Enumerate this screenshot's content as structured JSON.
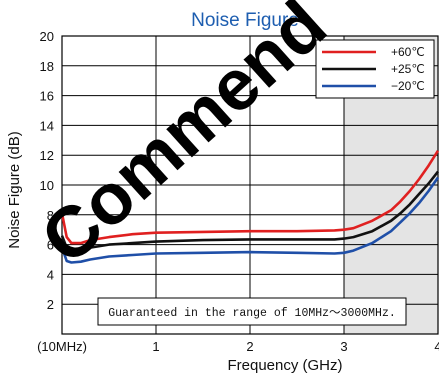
{
  "chart_data": {
    "type": "line",
    "title": "Noise Figure",
    "xlabel": "Frequency (GHz)",
    "ylabel": "Noise Figure (dB)",
    "xlim": [
      0,
      4
    ],
    "ylim": [
      0,
      20
    ],
    "x_ticks": [
      {
        "value": 0,
        "label": "(10MHz)"
      },
      {
        "value": 1,
        "label": "1"
      },
      {
        "value": 2,
        "label": "2"
      },
      {
        "value": 3,
        "label": "3"
      },
      {
        "value": 4,
        "label": "4"
      }
    ],
    "y_ticks": [
      2,
      4,
      6,
      8,
      10,
      12,
      14,
      16,
      18,
      20
    ],
    "grid": true,
    "legend_position": "top-right",
    "shaded_range": [
      3,
      4
    ],
    "annotation": "Guaranteed in the range of 10MHz～3000MHz.",
    "watermark": "Commend",
    "series": [
      {
        "name": "+60℃",
        "color": "#e02020",
        "x": [
          0,
          0.05,
          0.1,
          0.2,
          0.3,
          0.5,
          0.75,
          1.0,
          1.5,
          2.0,
          2.5,
          2.9,
          3.0,
          3.1,
          3.3,
          3.5,
          3.6,
          3.7,
          3.8,
          3.9,
          4.0
        ],
        "y": [
          8.1,
          6.5,
          6.1,
          6.1,
          6.3,
          6.5,
          6.7,
          6.8,
          6.85,
          6.9,
          6.9,
          6.95,
          7.0,
          7.1,
          7.6,
          8.3,
          8.9,
          9.6,
          10.4,
          11.3,
          12.3
        ]
      },
      {
        "name": "+25℃",
        "color": "#111111",
        "x": [
          0,
          0.05,
          0.1,
          0.2,
          0.3,
          0.5,
          0.75,
          1.0,
          1.5,
          2.0,
          2.5,
          2.9,
          3.0,
          3.1,
          3.3,
          3.5,
          3.6,
          3.7,
          3.8,
          3.9,
          4.0
        ],
        "y": [
          6.6,
          5.8,
          5.6,
          5.65,
          5.8,
          6.0,
          6.1,
          6.2,
          6.3,
          6.35,
          6.35,
          6.35,
          6.4,
          6.5,
          6.9,
          7.6,
          8.1,
          8.7,
          9.4,
          10.1,
          10.9
        ]
      },
      {
        "name": "−20℃",
        "color": "#1f4fa8",
        "x": [
          0,
          0.05,
          0.1,
          0.2,
          0.3,
          0.5,
          0.75,
          1.0,
          1.5,
          2.0,
          2.5,
          2.9,
          3.0,
          3.1,
          3.3,
          3.5,
          3.6,
          3.7,
          3.8,
          3.9,
          4.0
        ],
        "y": [
          5.8,
          4.9,
          4.8,
          4.85,
          5.0,
          5.2,
          5.3,
          5.4,
          5.45,
          5.5,
          5.45,
          5.4,
          5.45,
          5.6,
          6.1,
          6.9,
          7.5,
          8.1,
          8.8,
          9.6,
          10.5
        ]
      }
    ]
  }
}
